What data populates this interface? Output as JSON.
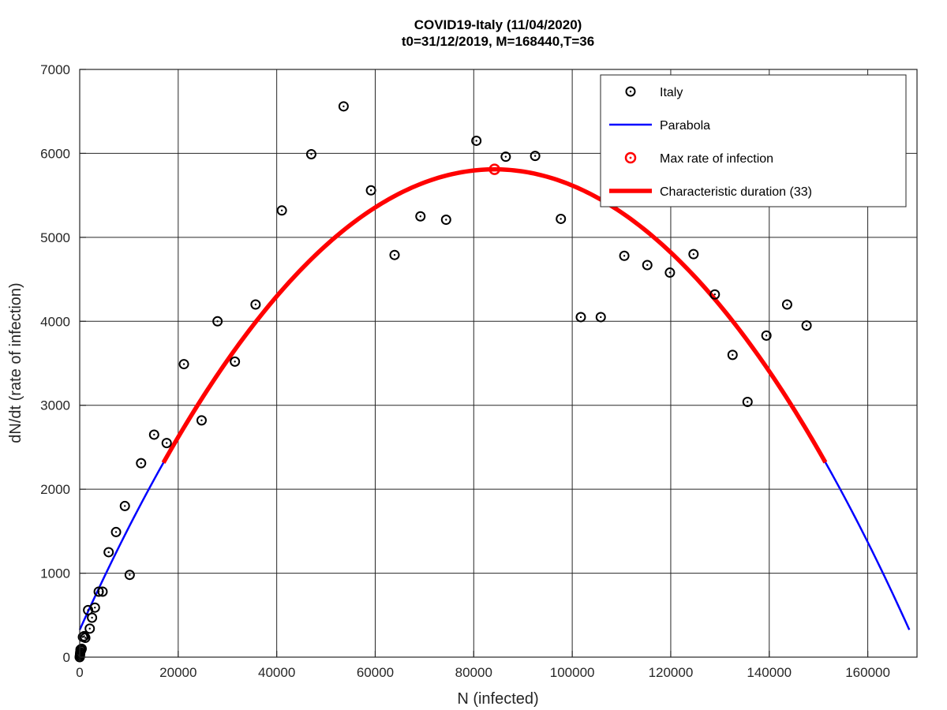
{
  "chart_data": {
    "type": "scatter",
    "title": "COVID19-Italy (11/04/2020)",
    "subtitle": "t0=31/12/2019, M=168440,T=36",
    "xlabel": "N (infected)",
    "ylabel": "dN/dt (rate of infection)",
    "xlim": [
      0,
      170000
    ],
    "ylim": [
      0,
      7000
    ],
    "xticks": [
      0,
      20000,
      40000,
      60000,
      80000,
      100000,
      120000,
      140000,
      160000
    ],
    "yticks": [
      0,
      1000,
      2000,
      3000,
      4000,
      5000,
      6000,
      7000
    ],
    "xtick_labels": [
      "0",
      "20000",
      "40000",
      "60000",
      "80000",
      "100000",
      "120000",
      "140000",
      "160000"
    ],
    "ytick_labels": [
      "0",
      "1000",
      "2000",
      "3000",
      "4000",
      "5000",
      "6000",
      "7000"
    ],
    "grid": true,
    "legend_position": "top-right",
    "series": [
      {
        "name": "Italy",
        "kind": "scatter",
        "color": "#000000",
        "x": [
          0,
          50,
          80,
          120,
          160,
          250,
          400,
          650,
          900,
          1130,
          1700,
          2040,
          2500,
          3090,
          3860,
          4640,
          5880,
          7380,
          9170,
          10150,
          12460,
          15110,
          17660,
          21160,
          24750,
          27980,
          31510,
          35710,
          41040,
          47020,
          53580,
          59140,
          63930,
          69180,
          74390,
          80540,
          86500,
          92470,
          97690,
          101740,
          105790,
          110570,
          115240,
          119830,
          124630,
          128950,
          132550,
          135590,
          139420,
          143630,
          147580
        ],
        "y": [
          0,
          20,
          40,
          60,
          90,
          80,
          100,
          240,
          250,
          230,
          560,
          340,
          470,
          590,
          780,
          780,
          1250,
          1490,
          1800,
          980,
          2310,
          2650,
          2550,
          3490,
          2820,
          4000,
          3520,
          4200,
          5320,
          5990,
          6560,
          5560,
          4790,
          5250,
          5210,
          6150,
          5960,
          5970,
          5220,
          4050,
          4050,
          4780,
          4670,
          4580,
          4800,
          4320,
          3600,
          3040,
          3830,
          4200,
          3950
        ]
      },
      {
        "name": "Parabola",
        "kind": "line",
        "color": "#0000ff",
        "x_range": [
          0,
          168440
        ]
      },
      {
        "name": "Max rate of infection",
        "kind": "marker",
        "color": "#ff0000",
        "x": [
          84220
        ],
        "y": [
          5810
        ]
      },
      {
        "name": "Characteristic duration (33)",
        "kind": "line",
        "color": "#ff0000",
        "x_range": [
          17000,
          151400
        ]
      }
    ],
    "parabola": {
      "a": 0.2752,
      "c": 325,
      "M": 168440
    }
  }
}
